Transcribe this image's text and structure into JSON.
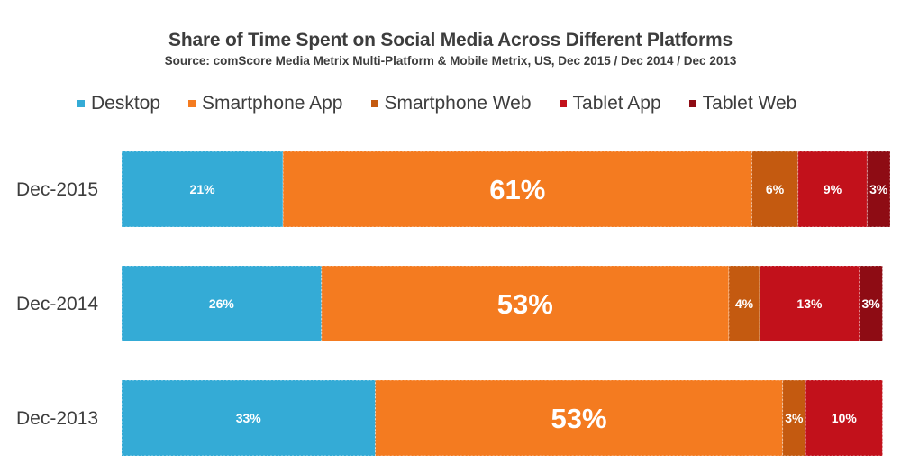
{
  "chart_data": {
    "type": "bar",
    "orientation": "horizontal",
    "stacked": true,
    "title": "Share of Time Spent on Social Media Across Different Platforms",
    "subtitle": "Source: comScore Media Metrix Multi-Platform & Mobile Metrix, US, Dec 2015 / Dec 2014 / Dec 2013",
    "xlabel": "",
    "ylabel": "",
    "xlim": [
      0,
      100
    ],
    "grid": false,
    "legend_position": "top",
    "categories": [
      "Dec-2015",
      "Dec-2014",
      "Dec-2013"
    ],
    "series": [
      {
        "name": "Desktop",
        "color": "#34abd6",
        "values": [
          21,
          26,
          33
        ],
        "labels": [
          "21%",
          "26%",
          "33%"
        ]
      },
      {
        "name": "Smartphone App",
        "color": "#f47b20",
        "values": [
          61,
          53,
          53
        ],
        "labels": [
          "61%",
          "53%",
          "53%"
        ]
      },
      {
        "name": "Smartphone Web",
        "color": "#c45a10",
        "values": [
          6,
          4,
          3
        ],
        "labels": [
          "6%",
          "4%",
          "3%"
        ]
      },
      {
        "name": "Tablet App",
        "color": "#c2111b",
        "values": [
          9,
          13,
          10
        ],
        "labels": [
          "9%",
          "13%",
          "10%"
        ]
      },
      {
        "name": "Tablet Web",
        "color": "#8e0c14",
        "values": [
          3,
          3,
          0
        ],
        "labels": [
          "3%",
          "3%",
          ""
        ]
      }
    ]
  }
}
